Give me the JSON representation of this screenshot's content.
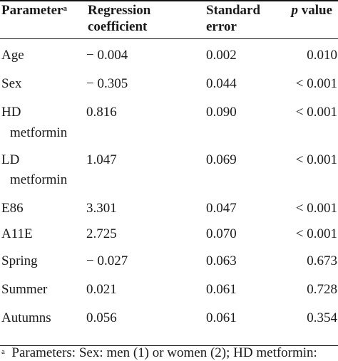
{
  "header": {
    "parameter": "Parameter",
    "parameter_mark": "a",
    "coef_line1": "Regression",
    "coef_line2": "coefficient",
    "se_line1": "Standard",
    "se_line2": "error",
    "p_italic": "p",
    "p_rest": " value"
  },
  "rows": [
    {
      "param": "Age",
      "coef": "− 0.004",
      "se": "0.002",
      "p": "0.010"
    },
    {
      "param": "Sex",
      "coef": "− 0.305",
      "se": "0.044",
      "p": "< 0.001"
    },
    {
      "param": "HD",
      "param_line2": "metformin",
      "coef": "0.816",
      "se": "0.090",
      "p": "< 0.001"
    },
    {
      "param": "LD",
      "param_line2": "metformin",
      "coef": "1.047",
      "se": "0.069",
      "p": "< 0.001"
    },
    {
      "param": "E86",
      "coef": "3.301",
      "se": "0.047",
      "p": "< 0.001"
    },
    {
      "param": "A11E",
      "coef": "2.725",
      "se": "0.070",
      "p": "< 0.001"
    },
    {
      "param": "Spring",
      "coef": "− 0.027",
      "se": "0.063",
      "p": "0.673"
    },
    {
      "param": "Summer",
      "coef": "0.021",
      "se": "0.061",
      "p": "0.728"
    },
    {
      "param": "Autumns",
      "coef": "0.056",
      "se": "0.061",
      "p": "0.354"
    }
  ],
  "footnote": {
    "mark": "a",
    "text": "  Parameters: Sex: men (1) or women (2); HD metformin:"
  }
}
